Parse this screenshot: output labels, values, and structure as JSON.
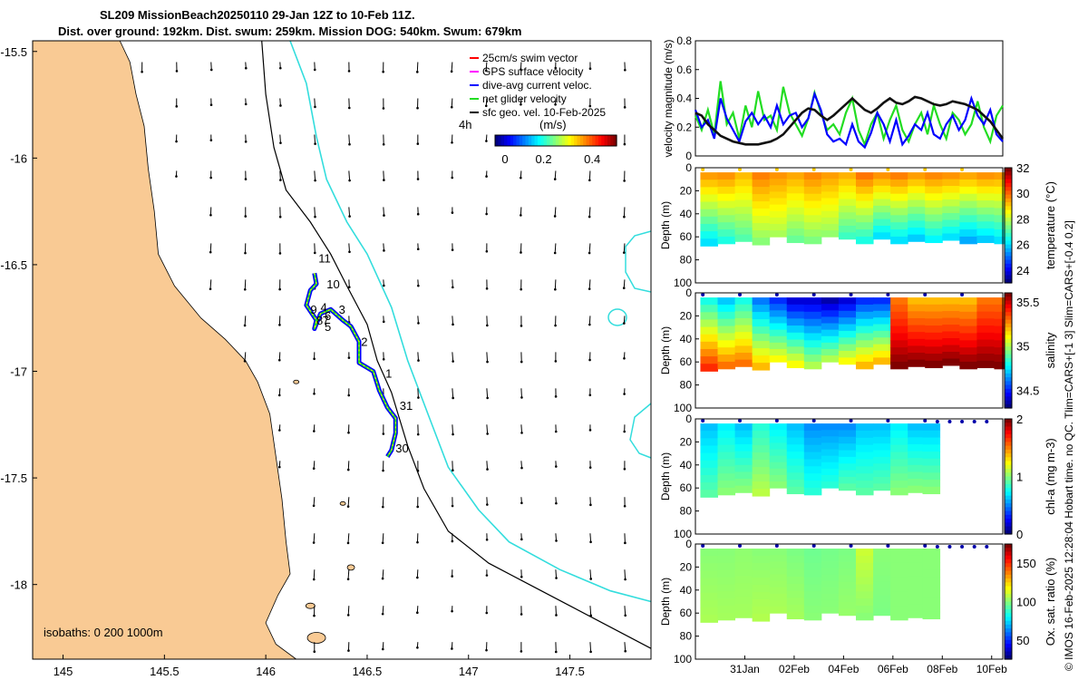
{
  "title": {
    "line1": "SL209 MissionBeach20250110 29-Jan 12Z to 10-Feb 11Z.",
    "line2": "Dist. over ground: 192km. Dist. swum: 259km. Mission DOG: 540km. Swum: 679km"
  },
  "side_credit": "© IMOS 16-Feb-2025 12:28:04 Hobart time. no QC. Tlim=CARS+[-1 3] Slim=CARS+[-0.4 0.2]",
  "colors": {
    "land": "#f9ca94",
    "isobath_200": "#000000",
    "isobath_1000": "#33dddd",
    "track_dive_avg": "#0000ff",
    "track_net": "#22dd22",
    "track_gps": "#ff00ff",
    "track_swim": "#ff0000",
    "geo_velocity": "#000000",
    "speed_line": "#111111"
  },
  "chart_data": [
    {
      "type": "map",
      "name": "glider-track-map",
      "xlim": [
        144.85,
        147.9
      ],
      "ylim": [
        -18.35,
        -15.45
      ],
      "xticks": [
        145,
        145.5,
        146,
        146.5,
        147,
        147.5
      ],
      "xtick_labels": [
        "145",
        "145.5",
        "146",
        "146.5",
        "147",
        "147.5"
      ],
      "yticks": [
        -15.5,
        -16,
        -16.5,
        -17,
        -17.5,
        -18
      ],
      "ytick_labels": [
        "-15.5",
        "-16",
        "-16.5",
        "-17",
        "-17.5",
        "-18"
      ],
      "isobath_label": "isobaths: 0   200  1000m",
      "legend": [
        {
          "label": "25cm/s swim vector",
          "color": "#ff0000"
        },
        {
          "label": "GPS surface velocity",
          "color": "#ff00ff"
        },
        {
          "label": "dive-avg current veloc.",
          "color": "#0000ff"
        },
        {
          "label": "net glider velocity",
          "color": "#22dd22"
        },
        {
          "label": "sfc geo. vel. 10-Feb-2025",
          "color": "#000000"
        }
      ],
      "speed_colorbar": {
        "label": "(m/s)",
        "interval_label": "4h",
        "range": [
          0,
          0.5
        ],
        "ticks": [
          0,
          0.2,
          0.4
        ],
        "tick_labels": [
          "0",
          "0.2",
          "0.4"
        ]
      },
      "track": [
        {
          "lon": 146.24,
          "lat": -16.54
        },
        {
          "lon": 146.25,
          "lat": -16.59
        },
        {
          "lon": 146.22,
          "lat": -16.62
        },
        {
          "lon": 146.2,
          "lat": -16.69
        },
        {
          "lon": 146.25,
          "lat": -16.76
        },
        {
          "lon": 146.24,
          "lat": -16.8
        },
        {
          "lon": 146.27,
          "lat": -16.73
        },
        {
          "lon": 146.32,
          "lat": -16.71
        },
        {
          "lon": 146.38,
          "lat": -16.76
        },
        {
          "lon": 146.42,
          "lat": -16.79
        },
        {
          "lon": 146.46,
          "lat": -16.86
        },
        {
          "lon": 146.46,
          "lat": -16.96
        },
        {
          "lon": 146.53,
          "lat": -17.0
        },
        {
          "lon": 146.56,
          "lat": -17.09
        },
        {
          "lon": 146.6,
          "lat": -17.17
        },
        {
          "lon": 146.64,
          "lat": -17.22
        },
        {
          "lon": 146.64,
          "lat": -17.29
        },
        {
          "lon": 146.62,
          "lat": -17.37
        },
        {
          "lon": 146.6,
          "lat": -17.4
        }
      ],
      "day_labels": [
        {
          "text": "11",
          "lon": 146.26,
          "lat": -16.49
        },
        {
          "text": "10",
          "lon": 146.3,
          "lat": -16.61
        },
        {
          "text": "9",
          "lon": 146.22,
          "lat": -16.73
        },
        {
          "text": "8",
          "lon": 146.25,
          "lat": -16.78
        },
        {
          "text": "7",
          "lon": 146.28,
          "lat": -16.78
        },
        {
          "text": "6",
          "lon": 146.29,
          "lat": -16.76
        },
        {
          "text": "5",
          "lon": 146.29,
          "lat": -16.81
        },
        {
          "text": "4",
          "lon": 146.27,
          "lat": -16.72
        },
        {
          "text": "3",
          "lon": 146.36,
          "lat": -16.73
        },
        {
          "text": "2",
          "lon": 146.47,
          "lat": -16.88
        },
        {
          "text": "1",
          "lon": 146.59,
          "lat": -17.03
        },
        {
          "text": "31",
          "lon": 146.66,
          "lat": -17.18
        },
        {
          "text": "30",
          "lon": 146.64,
          "lat": -17.38
        }
      ]
    },
    {
      "type": "line",
      "name": "velocity-magnitude",
      "ylabel": "velocity magnitude (m/s)",
      "ylim": [
        0,
        0.8
      ],
      "yticks": [
        0,
        0.2,
        0.4,
        0.6,
        0.8
      ],
      "ytick_labels": [
        "0",
        "0.2",
        "0.4",
        "0.6",
        "0.8"
      ],
      "xlim": [
        0,
        12.45
      ],
      "series": [
        {
          "name": "net glider velocity",
          "color": "#22dd22",
          "values": [
            0.28,
            0.18,
            0.32,
            0.15,
            0.52,
            0.22,
            0.3,
            0.12,
            0.35,
            0.2,
            0.45,
            0.25,
            0.28,
            0.18,
            0.48,
            0.3,
            0.22,
            0.14,
            0.26,
            0.44,
            0.3,
            0.18,
            0.22,
            0.15,
            0.3,
            0.4,
            0.18,
            0.08,
            0.22,
            0.3,
            0.12,
            0.25,
            0.35,
            0.18,
            0.1,
            0.22,
            0.3,
            0.15,
            0.35,
            0.22,
            0.12,
            0.3,
            0.25,
            0.15,
            0.22,
            0.38,
            0.2,
            0.1,
            0.28,
            0.35
          ]
        },
        {
          "name": "dive-avg current veloc.",
          "color": "#0000ff",
          "values": [
            0.32,
            0.2,
            0.25,
            0.12,
            0.4,
            0.26,
            0.18,
            0.1,
            0.24,
            0.3,
            0.22,
            0.28,
            0.2,
            0.35,
            0.22,
            0.28,
            0.3,
            0.2,
            0.26,
            0.43,
            0.32,
            0.15,
            0.1,
            0.12,
            0.08,
            0.22,
            0.1,
            0.06,
            0.16,
            0.3,
            0.22,
            0.1,
            0.25,
            0.08,
            0.14,
            0.22,
            0.18,
            0.3,
            0.15,
            0.12,
            0.22,
            0.28,
            0.18,
            0.25,
            0.4,
            0.28,
            0.22,
            0.32,
            0.15,
            0.1
          ]
        },
        {
          "name": "sfc geo. vel.",
          "color": "#111111",
          "values": [
            0.3,
            0.28,
            0.22,
            0.18,
            0.14,
            0.12,
            0.1,
            0.09,
            0.08,
            0.08,
            0.08,
            0.09,
            0.1,
            0.12,
            0.15,
            0.2,
            0.25,
            0.3,
            0.33,
            0.32,
            0.28,
            0.25,
            0.28,
            0.32,
            0.36,
            0.4,
            0.36,
            0.32,
            0.3,
            0.33,
            0.37,
            0.4,
            0.37,
            0.36,
            0.38,
            0.41,
            0.4,
            0.38,
            0.36,
            0.35,
            0.36,
            0.38,
            0.37,
            0.36,
            0.34,
            0.32,
            0.28,
            0.24,
            0.18,
            0.12
          ]
        }
      ]
    },
    {
      "type": "heatmap",
      "name": "temperature",
      "clabel": "temperature (°C)",
      "clim": [
        23,
        32
      ],
      "cticks": [
        24,
        26,
        28,
        30,
        32
      ],
      "ylabel": "Depth (m)",
      "ylim": [
        0,
        100
      ],
      "yticks": [
        0,
        20,
        40,
        60,
        80,
        100
      ],
      "columns": [
        {
          "t": 0.2,
          "top": 29.5,
          "bottom": 26.0,
          "depth": 68
        },
        {
          "t": 0.9,
          "top": 29.6,
          "bottom": 26.5,
          "depth": 66
        },
        {
          "t": 1.6,
          "top": 29.2,
          "bottom": 27.0,
          "depth": 64
        },
        {
          "t": 2.3,
          "top": 29.8,
          "bottom": 27.5,
          "depth": 67
        },
        {
          "t": 3.0,
          "top": 29.6,
          "bottom": 27.8,
          "depth": 60
        },
        {
          "t": 3.7,
          "top": 29.4,
          "bottom": 27.2,
          "depth": 65
        },
        {
          "t": 4.4,
          "top": 29.7,
          "bottom": 27.4,
          "depth": 66
        },
        {
          "t": 5.1,
          "top": 29.5,
          "bottom": 27.6,
          "depth": 60
        },
        {
          "t": 5.8,
          "top": 29.3,
          "bottom": 26.8,
          "depth": 62
        },
        {
          "t": 6.5,
          "top": 29.9,
          "bottom": 26.5,
          "depth": 66
        },
        {
          "t": 7.2,
          "top": 29.6,
          "bottom": 26.0,
          "depth": 62
        },
        {
          "t": 7.9,
          "top": 29.8,
          "bottom": 26.0,
          "depth": 66
        },
        {
          "t": 8.6,
          "top": 29.5,
          "bottom": 25.8,
          "depth": 64
        },
        {
          "t": 9.3,
          "top": 29.7,
          "bottom": 26.2,
          "depth": 65
        },
        {
          "t": 10.0,
          "top": 29.6,
          "bottom": 26.0,
          "depth": 63
        },
        {
          "t": 10.7,
          "top": 29.4,
          "bottom": 25.5,
          "depth": 66
        },
        {
          "t": 11.4,
          "top": 29.6,
          "bottom": 25.8,
          "depth": 65
        },
        {
          "t": 12.1,
          "top": 29.5,
          "bottom": 26.0,
          "depth": 66
        }
      ]
    },
    {
      "type": "heatmap",
      "name": "salinity",
      "clabel": "salinity",
      "clim": [
        34.3,
        35.6
      ],
      "cticks": [
        34.5,
        35,
        35.5
      ],
      "ylabel": "Depth (m)",
      "ylim": [
        0,
        100
      ],
      "yticks": [
        0,
        20,
        40,
        60,
        80,
        100
      ],
      "columns": [
        {
          "t": 0.2,
          "top": 34.8,
          "bottom": 35.4,
          "depth": 68
        },
        {
          "t": 0.9,
          "top": 34.7,
          "bottom": 35.3,
          "depth": 66
        },
        {
          "t": 1.6,
          "top": 34.8,
          "bottom": 35.3,
          "depth": 64
        },
        {
          "t": 2.3,
          "top": 34.6,
          "bottom": 35.2,
          "depth": 67
        },
        {
          "t": 3.0,
          "top": 34.5,
          "bottom": 35.1,
          "depth": 60
        },
        {
          "t": 3.7,
          "top": 34.4,
          "bottom": 35.1,
          "depth": 65
        },
        {
          "t": 4.4,
          "top": 34.4,
          "bottom": 35.0,
          "depth": 66
        },
        {
          "t": 5.1,
          "top": 34.35,
          "bottom": 35.0,
          "depth": 60
        },
        {
          "t": 5.8,
          "top": 34.4,
          "bottom": 35.1,
          "depth": 62
        },
        {
          "t": 6.5,
          "top": 34.5,
          "bottom": 35.2,
          "depth": 66
        },
        {
          "t": 7.2,
          "top": 34.5,
          "bottom": 35.2,
          "depth": 62
        },
        {
          "t": 7.9,
          "top": 35.3,
          "bottom": 35.6,
          "depth": 66
        },
        {
          "t": 8.6,
          "top": 35.2,
          "bottom": 35.6,
          "depth": 64
        },
        {
          "t": 9.3,
          "top": 35.2,
          "bottom": 35.6,
          "depth": 65
        },
        {
          "t": 10.0,
          "top": 35.2,
          "bottom": 35.6,
          "depth": 63
        },
        {
          "t": 10.7,
          "top": 35.2,
          "bottom": 35.6,
          "depth": 66
        },
        {
          "t": 11.4,
          "top": 35.3,
          "bottom": 35.6,
          "depth": 65
        },
        {
          "t": 12.1,
          "top": 35.3,
          "bottom": 35.6,
          "depth": 66
        }
      ]
    },
    {
      "type": "heatmap",
      "name": "chlorophyll-a",
      "clabel": "chl-a (mg m-3)",
      "clim": [
        0,
        2
      ],
      "cticks": [
        0,
        1,
        2
      ],
      "ylabel": "Depth (m)",
      "ylim": [
        0,
        100
      ],
      "yticks": [
        0,
        20,
        40,
        60,
        80,
        100
      ],
      "columns": [
        {
          "t": 0.2,
          "top": 0.6,
          "bottom": 0.9,
          "depth": 68
        },
        {
          "t": 0.9,
          "top": 0.7,
          "bottom": 1.0,
          "depth": 66
        },
        {
          "t": 1.6,
          "top": 0.6,
          "bottom": 1.0,
          "depth": 64
        },
        {
          "t": 2.3,
          "top": 0.8,
          "bottom": 1.1,
          "depth": 67
        },
        {
          "t": 3.0,
          "top": 0.7,
          "bottom": 1.0,
          "depth": 60
        },
        {
          "t": 3.7,
          "top": 0.6,
          "bottom": 0.9,
          "depth": 65
        },
        {
          "t": 4.4,
          "top": 0.5,
          "bottom": 0.8,
          "depth": 66
        },
        {
          "t": 5.1,
          "top": 0.5,
          "bottom": 0.8,
          "depth": 60
        },
        {
          "t": 5.8,
          "top": 0.5,
          "bottom": 0.9,
          "depth": 62
        },
        {
          "t": 6.5,
          "top": 0.6,
          "bottom": 0.9,
          "depth": 66
        },
        {
          "t": 7.2,
          "top": 0.6,
          "bottom": 0.9,
          "depth": 62
        },
        {
          "t": 7.9,
          "top": 0.7,
          "bottom": 1.0,
          "depth": 66
        },
        {
          "t": 8.6,
          "top": 0.6,
          "bottom": 1.0,
          "depth": 64
        },
        {
          "t": 9.2,
          "top": 0.6,
          "bottom": 1.0,
          "depth": 65
        }
      ]
    },
    {
      "type": "heatmap",
      "name": "oxygen-saturation",
      "clabel": "Ox. sat. ratio (%)",
      "clim": [
        25,
        175
      ],
      "cticks": [
        50,
        100,
        150
      ],
      "ylabel": "Depth (m)",
      "ylim": [
        0,
        100
      ],
      "yticks": [
        0,
        20,
        40,
        60,
        80,
        100
      ],
      "columns": [
        {
          "t": 0.2,
          "top": 100,
          "bottom": 105,
          "depth": 68
        },
        {
          "t": 0.9,
          "top": 100,
          "bottom": 104,
          "depth": 66
        },
        {
          "t": 1.6,
          "top": 101,
          "bottom": 104,
          "depth": 64
        },
        {
          "t": 2.3,
          "top": 100,
          "bottom": 106,
          "depth": 67
        },
        {
          "t": 3.0,
          "top": 100,
          "bottom": 105,
          "depth": 60
        },
        {
          "t": 3.7,
          "top": 98,
          "bottom": 104,
          "depth": 65
        },
        {
          "t": 4.4,
          "top": 96,
          "bottom": 100,
          "depth": 66
        },
        {
          "t": 5.1,
          "top": 97,
          "bottom": 100,
          "depth": 60
        },
        {
          "t": 5.8,
          "top": 98,
          "bottom": 102,
          "depth": 62
        },
        {
          "t": 6.5,
          "top": 110,
          "bottom": 100,
          "depth": 66
        },
        {
          "t": 7.2,
          "top": 100,
          "bottom": 98,
          "depth": 62
        },
        {
          "t": 7.9,
          "top": 100,
          "bottom": 100,
          "depth": 66
        },
        {
          "t": 8.6,
          "top": 100,
          "bottom": 100,
          "depth": 64
        },
        {
          "t": 9.2,
          "top": 100,
          "bottom": 100,
          "depth": 65
        }
      ]
    }
  ],
  "time_axis": {
    "xlim": [
      0,
      12.45
    ],
    "ticks": [
      2.5,
      4.5,
      6.5,
      8.5,
      10.5,
      12.5
    ],
    "tick_labels": [
      "31Jan",
      "02Feb",
      "04Feb",
      "06Feb",
      "08Feb",
      "10Feb"
    ]
  }
}
